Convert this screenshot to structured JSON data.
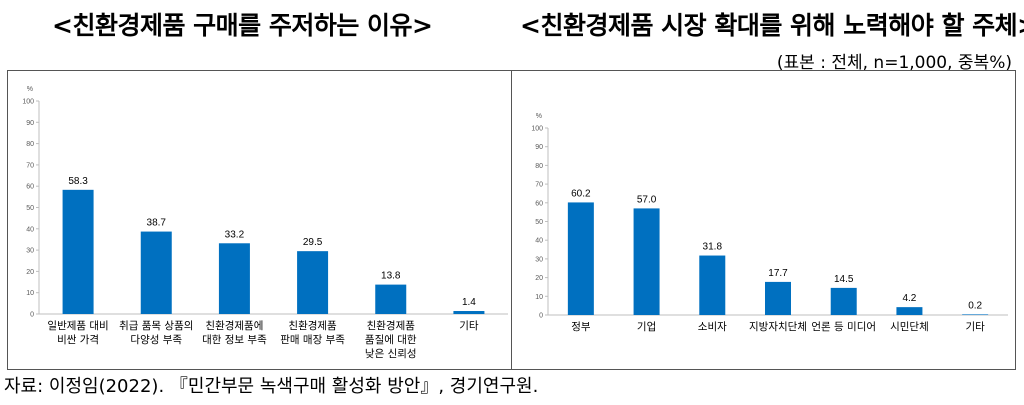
{
  "titles": {
    "left": "<친환경제품 구매를 주저하는 이유>",
    "right": "<친환경제품 시장 확대를 위해 노력해야 할 주체>"
  },
  "sample_note": "(표본 : 전체, n=1,000, 중복%)",
  "source_note": "자료: 이정임(2022). 『민간부문 녹색구매 활성화 방안』, 경기연구원.",
  "colors": {
    "bar": "#0070C0",
    "axis": "#BFBFBF",
    "text": "#000000"
  },
  "chart_data": [
    {
      "type": "bar",
      "title": "<친환경제품 구매를 주저하는 이유>",
      "ylabel": "%",
      "ylim": [
        0,
        100
      ],
      "yticks": [
        0,
        10,
        20,
        30,
        40,
        50,
        60,
        70,
        80,
        90,
        100
      ],
      "grid": false,
      "categories": [
        [
          "일반제품 대비",
          "비싼 가격"
        ],
        [
          "취급 품목 상품의",
          "다양성 부족"
        ],
        [
          "친환경제품에",
          "대한 정보 부족"
        ],
        [
          "친환경제품",
          "판매 매장 부족"
        ],
        [
          "친환경제품",
          "품질에 대한",
          "낮은 신뢰성"
        ],
        [
          "기타"
        ]
      ],
      "values": [
        58.3,
        38.7,
        33.2,
        29.5,
        13.8,
        1.4
      ],
      "value_labels": [
        "58.3",
        "38.7",
        "33.2",
        "29.5",
        "13.8",
        "1.4"
      ]
    },
    {
      "type": "bar",
      "title": "<친환경제품 시장 확대를 위해 노력해야 할 주체>",
      "ylabel": "%",
      "ylim": [
        0,
        100
      ],
      "yticks": [
        0,
        10,
        20,
        30,
        40,
        50,
        60,
        70,
        80,
        90,
        100
      ],
      "grid": false,
      "categories": [
        [
          "정부"
        ],
        [
          "기업"
        ],
        [
          "소비자"
        ],
        [
          "지방자치단체"
        ],
        [
          "언론 등 미디어"
        ],
        [
          "시민단체"
        ],
        [
          "기타"
        ]
      ],
      "values": [
        60.2,
        57.0,
        31.8,
        17.7,
        14.5,
        4.2,
        0.2
      ],
      "value_labels": [
        "60.2",
        "57.0",
        "31.8",
        "17.7",
        "14.5",
        "4.2",
        "0.2"
      ]
    }
  ]
}
